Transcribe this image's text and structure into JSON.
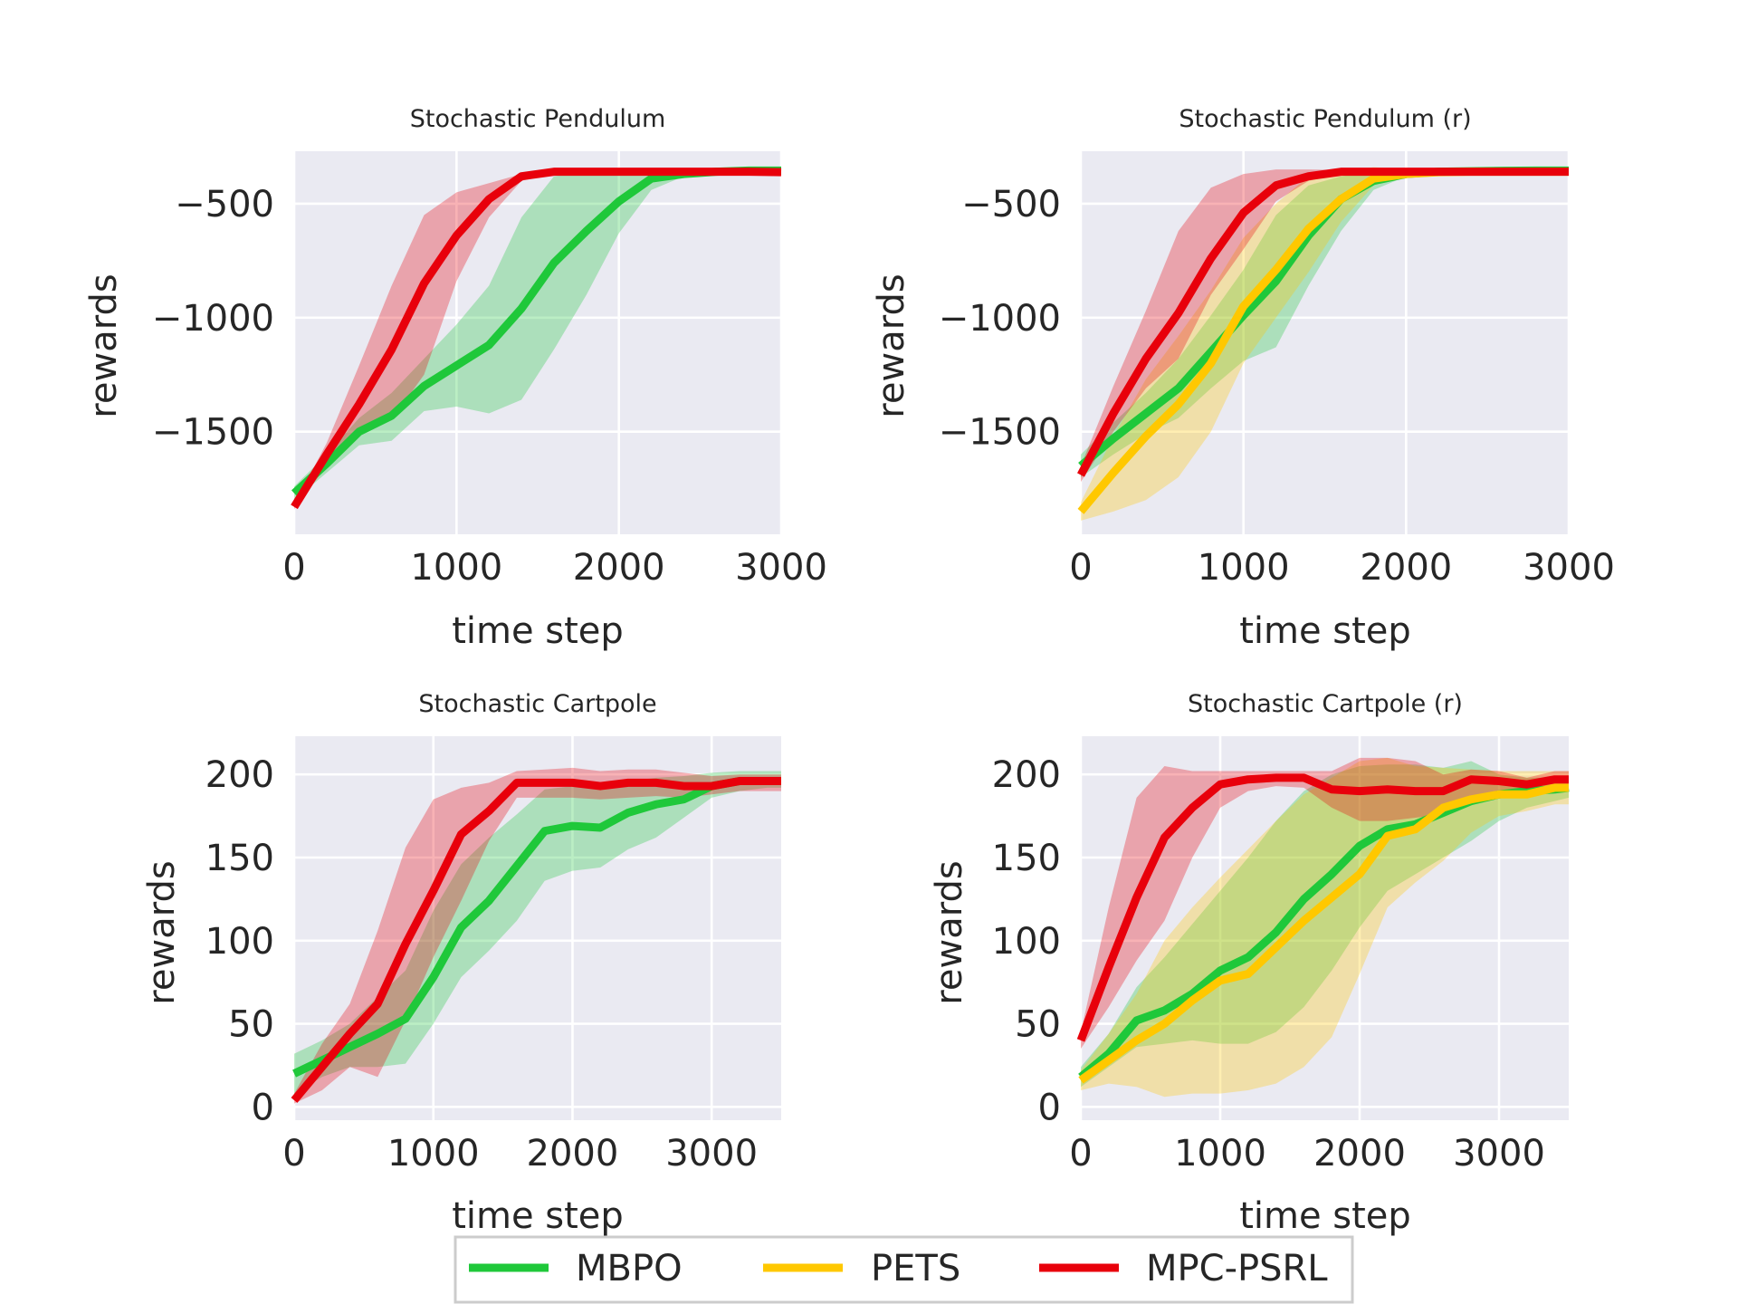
{
  "colors": {
    "MBPO": "#1fc83a",
    "PETS": "#ffc800",
    "MPC-PSRL": "#e8000b",
    "panel_bg": "#eaeaf2",
    "grid": "#ffffff"
  },
  "legend": {
    "items": [
      {
        "label": "MBPO",
        "color": "#1fc83a"
      },
      {
        "label": "PETS",
        "color": "#ffc800"
      },
      {
        "label": "MPC-PSRL",
        "color": "#e8000b"
      }
    ]
  },
  "chart_data": [
    {
      "type": "line",
      "title": "Stochastic Pendulum",
      "xlabel": "time step",
      "ylabel": "rewards",
      "xlim": [
        0,
        3000
      ],
      "ylim": [
        -1950,
        -270
      ],
      "xticks": [
        0,
        1000,
        2000,
        3000
      ],
      "xtick_labels": [
        "0",
        "1000",
        "2000",
        "3000"
      ],
      "yticks": [
        -1500,
        -1000,
        -500
      ],
      "ytick_labels": [
        "−1500",
        "−1000",
        "−500"
      ],
      "x": [
        0,
        200,
        400,
        600,
        800,
        1000,
        1200,
        1400,
        1600,
        1800,
        2000,
        2200,
        2400,
        2600,
        2800,
        3000
      ],
      "series": [
        {
          "name": "MBPO",
          "mean": [
            -1770,
            -1640,
            -1500,
            -1430,
            -1300,
            -1210,
            -1120,
            -960,
            -760,
            -620,
            -490,
            -390,
            -370,
            -360,
            -355,
            -355
          ],
          "lower": [
            -1800,
            -1680,
            -1560,
            -1540,
            -1410,
            -1390,
            -1420,
            -1360,
            -1140,
            -900,
            -630,
            -440,
            -380,
            -365,
            -360,
            -360
          ],
          "upper": [
            -1740,
            -1600,
            -1440,
            -1330,
            -1180,
            -1030,
            -860,
            -560,
            -380,
            -360,
            -360,
            -360,
            -360,
            -355,
            -350,
            -350
          ]
        },
        {
          "name": "MPC-PSRL",
          "mean": [
            -1830,
            -1600,
            -1380,
            -1140,
            -850,
            -640,
            -480,
            -380,
            -360,
            -360,
            -360,
            -360,
            -360,
            -360,
            -360,
            -362
          ],
          "lower": [
            -1840,
            -1650,
            -1500,
            -1450,
            -1250,
            -840,
            -560,
            -400,
            -370,
            -368,
            -368,
            -368,
            -368,
            -368,
            -368,
            -370
          ],
          "upper": [
            -1820,
            -1550,
            -1210,
            -860,
            -550,
            -450,
            -410,
            -370,
            -355,
            -355,
            -355,
            -355,
            -355,
            -355,
            -355,
            -355
          ]
        }
      ]
    },
    {
      "type": "line",
      "title": "Stochastic Pendulum (r)",
      "xlabel": "time step",
      "ylabel": "rewards",
      "xlim": [
        0,
        3000
      ],
      "ylim": [
        -1950,
        -270
      ],
      "xticks": [
        0,
        1000,
        2000,
        3000
      ],
      "xtick_labels": [
        "0",
        "1000",
        "2000",
        "3000"
      ],
      "yticks": [
        -1500,
        -1000,
        -500
      ],
      "ytick_labels": [
        "−1500",
        "−1000",
        "−500"
      ],
      "x": [
        0,
        200,
        400,
        600,
        800,
        1000,
        1200,
        1400,
        1600,
        1800,
        2000,
        2200,
        2400,
        2600,
        2800,
        3000
      ],
      "series": [
        {
          "name": "MBPO",
          "mean": [
            -1650,
            -1530,
            -1420,
            -1310,
            -1150,
            -990,
            -840,
            -640,
            -480,
            -400,
            -370,
            -360,
            -358,
            -356,
            -355,
            -355
          ],
          "lower": [
            -1700,
            -1600,
            -1510,
            -1440,
            -1310,
            -1190,
            -1130,
            -860,
            -620,
            -440,
            -380,
            -370,
            -365,
            -362,
            -360,
            -360
          ],
          "upper": [
            -1600,
            -1460,
            -1330,
            -1180,
            -990,
            -790,
            -550,
            -420,
            -380,
            -360,
            -358,
            -355,
            -352,
            -350,
            -350,
            -350
          ]
        },
        {
          "name": "PETS",
          "mean": [
            -1850,
            -1680,
            -1520,
            -1380,
            -1200,
            -950,
            -790,
            -610,
            -480,
            -390,
            -370,
            -362,
            -360,
            -360,
            -360,
            -360
          ],
          "lower": [
            -1890,
            -1850,
            -1800,
            -1700,
            -1500,
            -1200,
            -1000,
            -800,
            -580,
            -420,
            -385,
            -370,
            -368,
            -368,
            -368,
            -368
          ],
          "upper": [
            -1810,
            -1520,
            -1270,
            -1080,
            -880,
            -650,
            -500,
            -380,
            -360,
            -340,
            -350,
            -352,
            -352,
            -352,
            -352,
            -352
          ]
        },
        {
          "name": "MPC-PSRL",
          "mean": [
            -1690,
            -1420,
            -1180,
            -980,
            -740,
            -540,
            -420,
            -380,
            -360,
            -360,
            -360,
            -360,
            -360,
            -360,
            -360,
            -360
          ],
          "lower": [
            -1720,
            -1500,
            -1310,
            -1180,
            -900,
            -700,
            -490,
            -400,
            -370,
            -368,
            -368,
            -368,
            -368,
            -368,
            -368,
            -368
          ],
          "upper": [
            -1650,
            -1300,
            -970,
            -620,
            -430,
            -370,
            -350,
            -350,
            -352,
            -352,
            -352,
            -352,
            -352,
            -352,
            -352,
            -352
          ]
        }
      ]
    },
    {
      "type": "line",
      "title": "Stochastic Cartpole",
      "xlabel": "time step",
      "ylabel": "rewards",
      "xlim": [
        0,
        3500
      ],
      "ylim": [
        -8,
        223
      ],
      "xticks": [
        0,
        1000,
        2000,
        3000
      ],
      "xtick_labels": [
        "0",
        "1000",
        "2000",
        "3000"
      ],
      "yticks": [
        0,
        50,
        100,
        150,
        200
      ],
      "ytick_labels": [
        "0",
        "50",
        "100",
        "150",
        "200"
      ],
      "x": [
        0,
        200,
        400,
        600,
        800,
        1000,
        1200,
        1400,
        1600,
        1800,
        2000,
        2200,
        2400,
        2600,
        2800,
        3000,
        3200,
        3400,
        3500
      ],
      "series": [
        {
          "name": "MBPO",
          "mean": [
            20,
            28,
            36,
            44,
            53,
            78,
            108,
            124,
            145,
            166,
            169,
            168,
            177,
            182,
            185,
            193,
            196,
            196,
            196
          ],
          "lower": [
            8,
            18,
            24,
            24,
            26,
            50,
            78,
            94,
            112,
            136,
            142,
            144,
            155,
            162,
            174,
            186,
            190,
            192,
            192
          ],
          "upper": [
            32,
            40,
            50,
            66,
            82,
            118,
            146,
            162,
            176,
            191,
            193,
            193,
            196,
            198,
            199,
            201,
            202,
            202,
            202
          ]
        },
        {
          "name": "MPC-PSRL",
          "mean": [
            4,
            24,
            44,
            62,
            98,
            130,
            164,
            178,
            195,
            195,
            195,
            193,
            195,
            195,
            193,
            193,
            196,
            196,
            196
          ],
          "lower": [
            2,
            10,
            24,
            18,
            52,
            90,
            124,
            160,
            186,
            186,
            186,
            185,
            186,
            187,
            186,
            188,
            190,
            190,
            190
          ],
          "upper": [
            8,
            38,
            62,
            106,
            156,
            185,
            192,
            195,
            202,
            203,
            204,
            202,
            203,
            203,
            201,
            199,
            200,
            200,
            200
          ]
        }
      ]
    },
    {
      "type": "line",
      "title": "Stochastic Cartpole (r)",
      "xlabel": "time step",
      "ylabel": "rewards",
      "xlim": [
        0,
        3500
      ],
      "ylim": [
        -8,
        223
      ],
      "xticks": [
        0,
        1000,
        2000,
        3000
      ],
      "xtick_labels": [
        "0",
        "1000",
        "2000",
        "3000"
      ],
      "yticks": [
        0,
        50,
        100,
        150,
        200
      ],
      "ytick_labels": [
        "0",
        "50",
        "100",
        "150",
        "200"
      ],
      "x": [
        0,
        200,
        400,
        600,
        800,
        1000,
        1200,
        1400,
        1600,
        1800,
        2000,
        2200,
        2400,
        2600,
        2800,
        3000,
        3200,
        3400,
        3500
      ],
      "series": [
        {
          "name": "MBPO",
          "mean": [
            18,
            32,
            52,
            58,
            68,
            82,
            90,
            105,
            125,
            140,
            157,
            167,
            170,
            177,
            184,
            188,
            190,
            191,
            192
          ],
          "lower": [
            12,
            24,
            36,
            38,
            40,
            38,
            38,
            45,
            60,
            82,
            108,
            130,
            140,
            150,
            160,
            172,
            180,
            184,
            186
          ],
          "upper": [
            24,
            44,
            72,
            90,
            110,
            130,
            150,
            172,
            190,
            200,
            205,
            206,
            206,
            204,
            208,
            200,
            198,
            198,
            198
          ]
        },
        {
          "name": "PETS",
          "mean": [
            16,
            28,
            40,
            50,
            64,
            76,
            80,
            96,
            112,
            126,
            140,
            163,
            167,
            180,
            185,
            188,
            188,
            192,
            192
          ],
          "lower": [
            10,
            14,
            12,
            6,
            8,
            8,
            10,
            14,
            24,
            42,
            80,
            120,
            135,
            148,
            165,
            175,
            178,
            182,
            182
          ],
          "upper": [
            22,
            44,
            68,
            100,
            120,
            138,
            155,
            172,
            188,
            198,
            208,
            210,
            205,
            204,
            203,
            202,
            202,
            202,
            202
          ]
        },
        {
          "name": "MPC-PSRL",
          "mean": [
            40,
            84,
            126,
            162,
            180,
            194,
            197,
            198,
            198,
            191,
            190,
            191,
            190,
            190,
            197,
            196,
            194,
            197,
            197
          ],
          "lower": [
            35,
            60,
            88,
            112,
            150,
            180,
            190,
            193,
            192,
            180,
            172,
            172,
            174,
            176,
            186,
            188,
            190,
            190,
            190
          ],
          "upper": [
            45,
            120,
            186,
            205,
            202,
            202,
            202,
            202,
            202,
            202,
            210,
            210,
            208,
            200,
            203,
            202,
            198,
            202,
            202
          ]
        }
      ]
    }
  ]
}
